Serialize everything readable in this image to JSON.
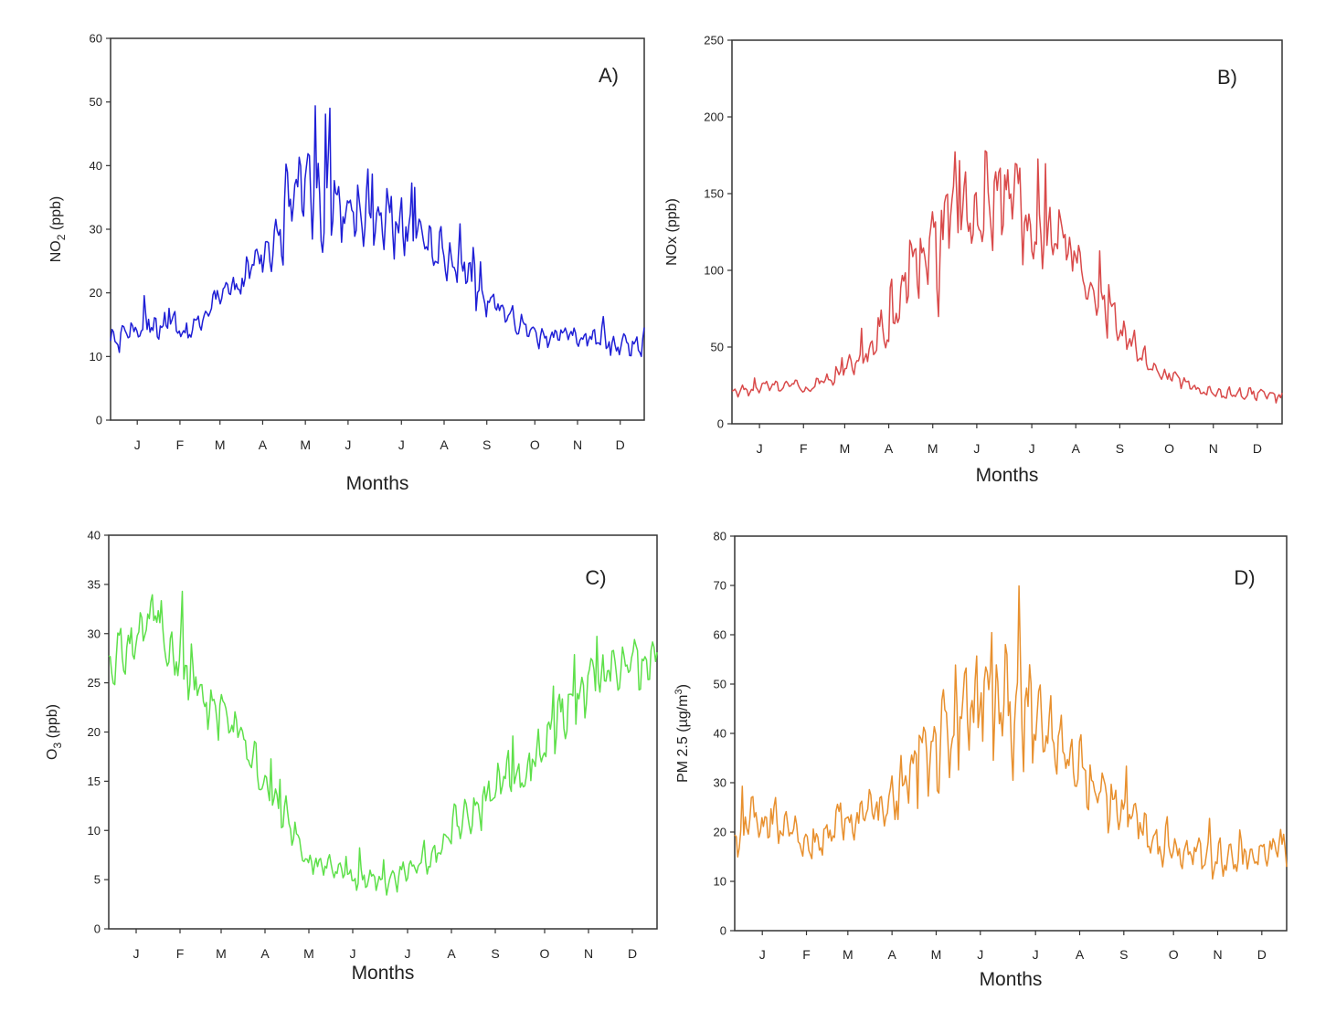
{
  "chart_data": [
    {
      "type": "line",
      "panel_label": "A)",
      "ylabel": "NO2 (ppb)",
      "ylabel_main": "NO",
      "ylabel_sub": "2",
      "ylabel_tail": " (ppb)",
      "xlabel": "Months",
      "ylim": [
        0,
        60
      ],
      "yticks": [
        0,
        10,
        20,
        30,
        40,
        50,
        60
      ],
      "xticks": [
        "J",
        "F",
        "M",
        "A",
        "M",
        "J",
        "J",
        "A",
        "S",
        "O",
        "N",
        "D"
      ],
      "x_range": [
        0,
        365
      ],
      "color": "#1f1fd6",
      "series": [
        {
          "x": [
            0,
            10,
            20,
            31,
            41,
            51,
            59,
            69,
            79,
            90,
            100,
            110,
            120,
            130,
            140,
            151,
            161,
            171,
            181,
            191,
            201,
            212,
            222,
            232,
            243,
            253,
            263,
            273,
            283,
            293,
            304,
            314,
            324,
            334,
            344,
            354,
            364
          ],
          "values": [
            12,
            13.5,
            14.5,
            15,
            15.5,
            13,
            15,
            18,
            20,
            21.5,
            25,
            27,
            33,
            36,
            34,
            37,
            33,
            34,
            31,
            32,
            30,
            29,
            28,
            26,
            23.5,
            20,
            17.5,
            16,
            14.5,
            13,
            13.5,
            13.5,
            13,
            12,
            12,
            12.5,
            11.5
          ],
          "amplitude": [
            2,
            2,
            2,
            2,
            2,
            1.5,
            1.5,
            2,
            2,
            2.5,
            3,
            4.5,
            6,
            7,
            6.5,
            7.5,
            6.5,
            6,
            5,
            5,
            4.5,
            4,
            4,
            3.5,
            3.5,
            2.5,
            2.5,
            2,
            2,
            1.5,
            1.5,
            1.5,
            1.5,
            1.5,
            2,
            2,
            2
          ]
        }
      ]
    },
    {
      "type": "line",
      "panel_label": "B)",
      "ylabel": "NOx (ppb)",
      "xlabel": "Months",
      "ylim": [
        0,
        250
      ],
      "yticks": [
        0,
        50,
        100,
        150,
        200,
        250
      ],
      "xticks": [
        "J",
        "F",
        "M",
        "A",
        "M",
        "J",
        "J",
        "A",
        "S",
        "O",
        "N",
        "D"
      ],
      "x_range": [
        0,
        365
      ],
      "color": "#d94a4a",
      "series": [
        {
          "x": [
            0,
            10,
            20,
            31,
            41,
            51,
            59,
            69,
            79,
            90,
            100,
            110,
            120,
            130,
            140,
            151,
            161,
            171,
            181,
            191,
            201,
            212,
            222,
            232,
            243,
            253,
            263,
            273,
            283,
            293,
            304,
            314,
            324,
            334,
            344,
            354,
            364
          ],
          "values": [
            20,
            22,
            24,
            25,
            26,
            22,
            27,
            33,
            38,
            45,
            58,
            78,
            100,
            115,
            120,
            135,
            140,
            145,
            150,
            140,
            135,
            125,
            120,
            100,
            80,
            68,
            55,
            42,
            35,
            30,
            25,
            21,
            20,
            20,
            20,
            20,
            18
          ],
          "amplitude": [
            4,
            4,
            4,
            4,
            3,
            3,
            4,
            6,
            7,
            9,
            15,
            25,
            32,
            35,
            33,
            32,
            30,
            32,
            30,
            28,
            25,
            22,
            18,
            16,
            14,
            12,
            10,
            8,
            6,
            5,
            4,
            4,
            4,
            4,
            4,
            4,
            4
          ]
        }
      ]
    },
    {
      "type": "line",
      "panel_label": "C)",
      "ylabel": "O3 (ppb)",
      "ylabel_main": "O",
      "ylabel_sub": "3",
      "ylabel_tail": " (ppb)",
      "xlabel": "Months",
      "ylim": [
        0,
        40
      ],
      "yticks": [
        0,
        5,
        10,
        15,
        20,
        25,
        30,
        35,
        40
      ],
      "xticks": [
        "J",
        "F",
        "M",
        "A",
        "M",
        "J",
        "J",
        "A",
        "S",
        "O",
        "N",
        "D"
      ],
      "x_range": [
        0,
        365
      ],
      "color": "#5ee04a",
      "series": [
        {
          "x": [
            0,
            10,
            20,
            31,
            41,
            51,
            59,
            69,
            79,
            90,
            100,
            110,
            120,
            130,
            140,
            151,
            161,
            171,
            181,
            191,
            201,
            212,
            222,
            232,
            243,
            253,
            263,
            273,
            283,
            293,
            304,
            314,
            324,
            334,
            344,
            354,
            364
          ],
          "values": [
            27,
            28,
            30,
            32,
            28,
            26,
            25,
            23,
            22,
            19,
            16,
            14,
            11,
            7,
            6.5,
            6,
            5,
            5,
            4.5,
            5,
            6,
            7,
            9,
            11,
            12,
            14,
            15,
            15.5,
            17,
            19,
            22,
            24,
            25,
            26,
            27,
            28.5,
            27
          ],
          "amplitude": [
            3,
            3,
            4,
            3,
            3,
            3,
            3,
            2.5,
            2.5,
            2,
            2,
            2,
            2,
            1.5,
            1.2,
            1.2,
            1.2,
            1.2,
            1.2,
            1.2,
            1.3,
            1.5,
            2,
            2,
            2,
            2.5,
            2.5,
            2.5,
            2.5,
            2.5,
            3,
            3,
            3,
            3,
            3,
            3.5,
            3
          ]
        }
      ]
    },
    {
      "type": "line",
      "panel_label": "D)",
      "ylabel": "PM 2.5 (µg/m3)",
      "ylabel_main": "PM 2.5 (µg/m",
      "ylabel_sup": "3",
      "ylabel_tail": ")",
      "xlabel": "Months",
      "ylim": [
        0,
        80
      ],
      "yticks": [
        0,
        10,
        20,
        30,
        40,
        50,
        60,
        70,
        80
      ],
      "xticks": [
        "J",
        "F",
        "M",
        "A",
        "M",
        "J",
        "J",
        "A",
        "S",
        "O",
        "N",
        "D"
      ],
      "x_range": [
        0,
        365
      ],
      "color": "#e8902e",
      "series": [
        {
          "x": [
            0,
            10,
            20,
            31,
            41,
            51,
            59,
            69,
            79,
            90,
            100,
            110,
            120,
            130,
            140,
            151,
            161,
            171,
            181,
            191,
            201,
            212,
            222,
            232,
            243,
            253,
            263,
            273,
            283,
            293,
            304,
            314,
            324,
            334,
            344,
            354,
            364
          ],
          "values": [
            18,
            21,
            24,
            20,
            19,
            17,
            18,
            23,
            22,
            24,
            24,
            28,
            33,
            37,
            40,
            44,
            45,
            48,
            46,
            44,
            42,
            38,
            34,
            30,
            28,
            26,
            24,
            19,
            17,
            16,
            15,
            15,
            15,
            16,
            16,
            17,
            16
          ],
          "amplitude": [
            4,
            5,
            6,
            4,
            3,
            3,
            3,
            4,
            4,
            5,
            5,
            7,
            9,
            10,
            11,
            12,
            12,
            12,
            12,
            11,
            10,
            9,
            8,
            7,
            6,
            6,
            5,
            4,
            4,
            4,
            4,
            4,
            4,
            4,
            4,
            4,
            4
          ]
        }
      ]
    }
  ]
}
